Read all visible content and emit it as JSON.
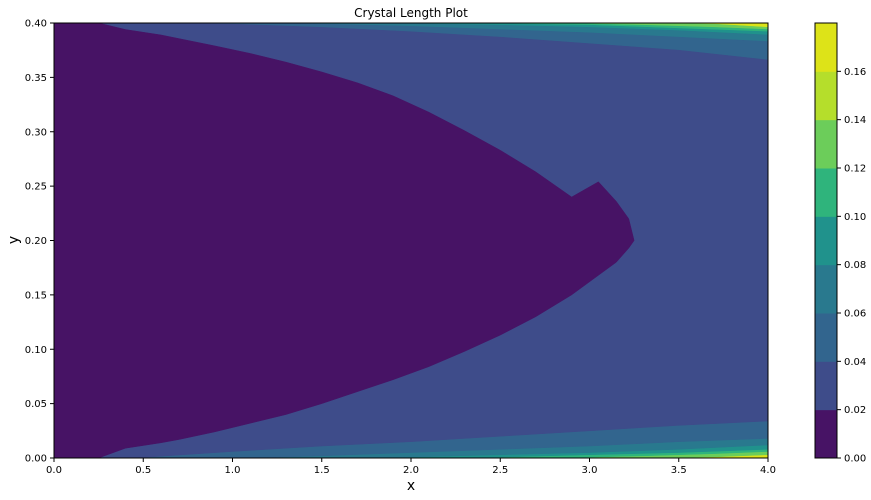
{
  "chart_data": {
    "type": "contourf",
    "title": "Crystal Length Plot",
    "xlabel": "x",
    "ylabel": "y",
    "xlim": [
      0.0,
      4.0
    ],
    "ylim": [
      0.0,
      0.4
    ],
    "x_ticks": [
      "0.0",
      "0.5",
      "1.0",
      "1.5",
      "2.0",
      "2.5",
      "3.0",
      "3.5",
      "4.0"
    ],
    "y_ticks": [
      "0.00",
      "0.05",
      "0.10",
      "0.15",
      "0.20",
      "0.25",
      "0.30",
      "0.35",
      "0.40"
    ],
    "colorbar": {
      "levels": [
        0.0,
        0.02,
        0.04,
        0.06,
        0.08,
        0.1,
        0.12,
        0.14,
        0.16
      ],
      "tick_labels": [
        "0.00",
        "0.02",
        "0.04",
        "0.06",
        "0.08",
        "0.10",
        "0.12",
        "0.14",
        "0.16"
      ],
      "colors": [
        "#471365",
        "#3e4c8a",
        "#32658e",
        "#29798e",
        "#20928c",
        "#2fb47c",
        "#6ccd5a",
        "#b5de2b",
        "#dde318"
      ]
    },
    "contour_boundaries": {
      "0.02": {
        "top": [
          [
            0.0,
            0.4
          ],
          [
            0.25,
            0.4
          ],
          [
            0.4,
            0.394
          ],
          [
            0.6,
            0.389
          ],
          [
            0.72,
            0.385
          ],
          [
            0.9,
            0.379
          ],
          [
            1.1,
            0.372
          ],
          [
            1.3,
            0.364
          ],
          [
            1.5,
            0.355
          ],
          [
            1.7,
            0.345
          ],
          [
            1.9,
            0.333
          ],
          [
            2.1,
            0.318
          ],
          [
            2.3,
            0.301
          ],
          [
            2.5,
            0.283
          ],
          [
            2.7,
            0.263
          ],
          [
            2.9,
            0.24
          ],
          [
            3.05,
            0.254
          ],
          [
            3.15,
            0.236
          ],
          [
            3.22,
            0.22
          ],
          [
            3.25,
            0.2
          ]
        ],
        "bottom": [
          [
            0.0,
            0.0
          ],
          [
            0.25,
            0.0
          ],
          [
            0.4,
            0.009
          ],
          [
            0.6,
            0.014
          ],
          [
            0.7,
            0.017
          ],
          [
            0.9,
            0.024
          ],
          [
            1.1,
            0.032
          ],
          [
            1.3,
            0.04
          ],
          [
            1.5,
            0.05
          ],
          [
            1.7,
            0.061
          ],
          [
            1.9,
            0.072
          ],
          [
            2.1,
            0.084
          ],
          [
            2.3,
            0.098
          ],
          [
            2.5,
            0.113
          ],
          [
            2.7,
            0.13
          ],
          [
            2.9,
            0.15
          ],
          [
            3.05,
            0.168
          ],
          [
            3.15,
            0.18
          ],
          [
            3.22,
            0.193
          ],
          [
            3.25,
            0.2
          ]
        ]
      },
      "0.04": {
        "top": [
          [
            0.0,
            0.4
          ],
          [
            0.45,
            0.4
          ],
          [
            1.0,
            0.399
          ],
          [
            1.5,
            0.396
          ],
          [
            2.0,
            0.392
          ],
          [
            2.5,
            0.387
          ],
          [
            3.0,
            0.381
          ],
          [
            3.5,
            0.375
          ],
          [
            4.0,
            0.366
          ]
        ],
        "bottom": [
          [
            0.0,
            0.0
          ],
          [
            0.45,
            0.0
          ],
          [
            1.0,
            0.006
          ],
          [
            1.5,
            0.011
          ],
          [
            2.0,
            0.015
          ],
          [
            2.5,
            0.02
          ],
          [
            3.0,
            0.025
          ],
          [
            3.5,
            0.03
          ],
          [
            4.0,
            0.034
          ]
        ]
      },
      "0.06": {
        "top": [
          [
            1.1,
            0.4
          ],
          [
            1.5,
            0.399
          ],
          [
            2.0,
            0.397
          ],
          [
            2.5,
            0.394
          ],
          [
            3.0,
            0.391
          ],
          [
            3.5,
            0.387
          ],
          [
            4.0,
            0.383
          ]
        ],
        "bottom": [
          [
            1.1,
            0.0
          ],
          [
            1.5,
            0.002
          ],
          [
            2.0,
            0.005
          ],
          [
            2.5,
            0.008
          ],
          [
            3.0,
            0.011
          ],
          [
            3.5,
            0.015
          ],
          [
            4.0,
            0.018
          ]
        ]
      },
      "0.08": {
        "top": [
          [
            1.8,
            0.4
          ],
          [
            2.5,
            0.398
          ],
          [
            3.0,
            0.396
          ],
          [
            3.5,
            0.393
          ],
          [
            4.0,
            0.389
          ]
        ],
        "bottom": [
          [
            1.8,
            0.0
          ],
          [
            2.5,
            0.003
          ],
          [
            3.0,
            0.005
          ],
          [
            3.5,
            0.008
          ],
          [
            4.0,
            0.012
          ]
        ]
      },
      "0.10": {
        "top": [
          [
            2.3,
            0.4
          ],
          [
            3.0,
            0.398
          ],
          [
            3.5,
            0.395
          ],
          [
            4.0,
            0.392
          ]
        ],
        "bottom": [
          [
            2.3,
            0.0
          ],
          [
            3.0,
            0.003
          ],
          [
            3.5,
            0.005
          ],
          [
            4.0,
            0.008
          ]
        ]
      },
      "0.12": {
        "top": [
          [
            2.8,
            0.4
          ],
          [
            3.3,
            0.398
          ],
          [
            3.7,
            0.396
          ],
          [
            4.0,
            0.394
          ]
        ],
        "bottom": [
          [
            2.8,
            0.0
          ],
          [
            3.3,
            0.002
          ],
          [
            3.7,
            0.004
          ],
          [
            4.0,
            0.006
          ]
        ]
      },
      "0.14": {
        "top": [
          [
            3.3,
            0.4
          ],
          [
            3.7,
            0.399
          ],
          [
            4.0,
            0.396
          ]
        ],
        "bottom": [
          [
            3.3,
            0.0
          ],
          [
            3.7,
            0.001
          ],
          [
            4.0,
            0.003
          ]
        ]
      }
    }
  }
}
